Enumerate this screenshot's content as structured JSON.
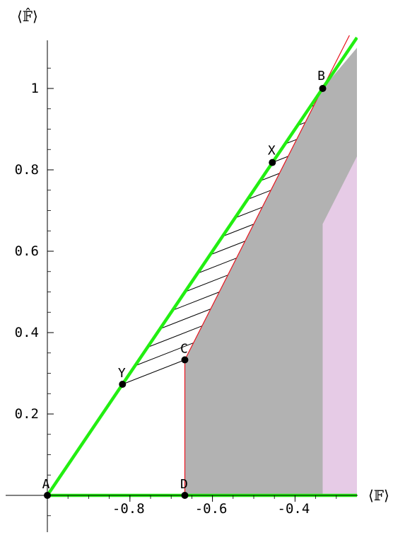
{
  "chart_data": {
    "type": "area",
    "xlabel": "⟨𝔽⟩",
    "ylabel": "⟨𝔽̂⟩",
    "xlim": [
      -1.0,
      -0.25
    ],
    "ylim": [
      -0.1,
      1.1
    ],
    "x_ticks": [
      {
        "value": -0.8,
        "label": "-0.8"
      },
      {
        "value": -0.6,
        "label": "-0.6"
      },
      {
        "value": -0.4,
        "label": "-0.4"
      }
    ],
    "y_ticks": [
      {
        "value": 0.2,
        "label": "0.2"
      },
      {
        "value": 0.4,
        "label": "0.4"
      },
      {
        "value": 0.6,
        "label": "0.6"
      },
      {
        "value": 0.8,
        "label": "0.8"
      },
      {
        "value": 1.0,
        "label": "1"
      }
    ],
    "points": [
      {
        "name": "A",
        "x": -1.0,
        "y": 0.0
      },
      {
        "name": "B",
        "x": -0.333,
        "y": 1.0
      },
      {
        "name": "C",
        "x": -0.667,
        "y": 0.333
      },
      {
        "name": "D",
        "x": -0.667,
        "y": 0.0
      },
      {
        "name": "X",
        "x": -0.455,
        "y": 0.818
      },
      {
        "name": "Y",
        "x": -0.818,
        "y": 0.273
      }
    ],
    "regions": {
      "gray": [
        [
          -0.667,
          0.0
        ],
        [
          -0.667,
          0.333
        ],
        [
          -0.333,
          1.0
        ],
        [
          -0.25,
          1.1
        ],
        [
          -0.25,
          0.0
        ]
      ],
      "pink": [
        [
          -0.333,
          0.0
        ],
        [
          -0.333,
          0.667
        ],
        [
          -0.25,
          0.833
        ],
        [
          -0.25,
          0.0
        ]
      ],
      "hatched": [
        [
          -0.818,
          0.273
        ],
        [
          -0.667,
          0.333
        ],
        [
          -0.333,
          1.0
        ],
        [
          -0.455,
          0.818
        ]
      ]
    },
    "green_lines": [
      [
        [
          -1.0,
          0.0
        ],
        [
          -0.25,
          1.125
        ]
      ],
      [
        [
          -1.0,
          0.0
        ],
        [
          -0.25,
          0.0
        ]
      ]
    ],
    "red_line": [
      [
        -0.667,
        0.0
      ],
      [
        -0.667,
        0.333
      ],
      [
        -0.25,
        1.167
      ]
    ],
    "colors": {
      "gray": "#b2b2b2",
      "pink": "#e6cbe6",
      "green": "#22ee11",
      "red": "#e8141e"
    }
  }
}
